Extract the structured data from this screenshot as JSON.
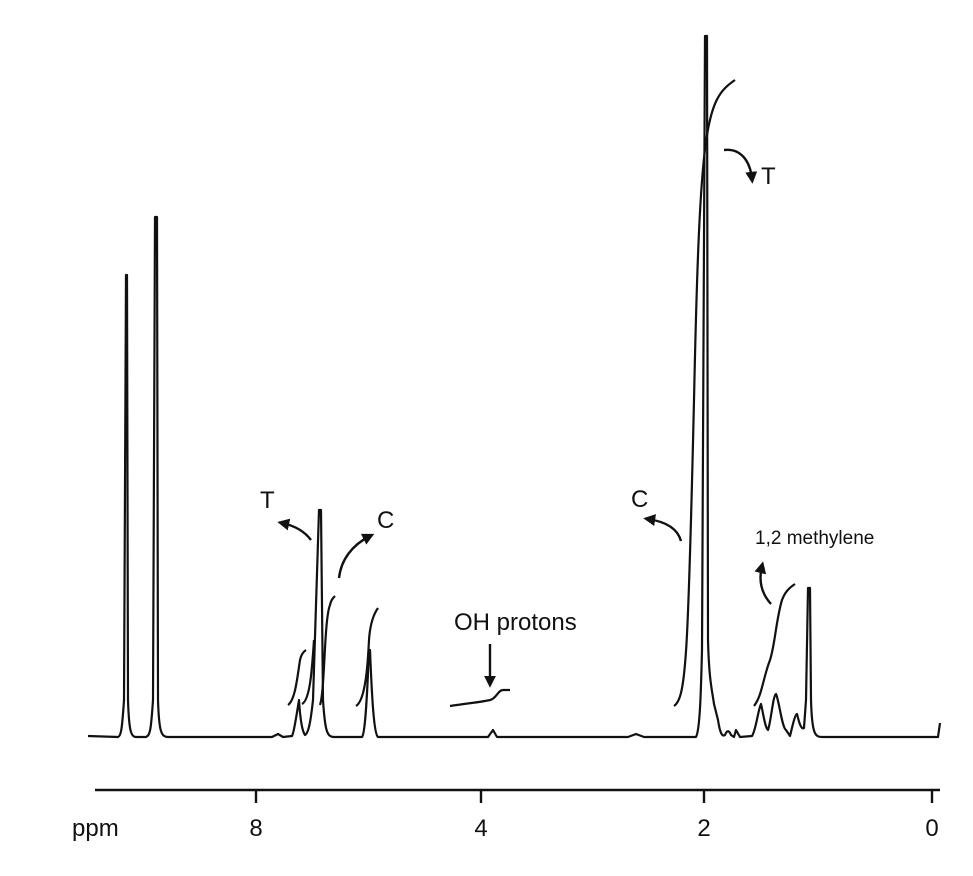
{
  "chart_data": {
    "type": "line",
    "title": "",
    "xlabel": "ppm",
    "ylabel": "",
    "x_reversed": true,
    "xlim": [
      9.5,
      0
    ],
    "ticks": [
      "8",
      "4",
      "2",
      "0"
    ],
    "peaks_ppm": [
      9.4,
      9.1,
      7.6,
      7.4,
      5.0,
      3.85,
      2.65,
      2.0,
      1.8,
      1.7,
      1.5,
      1.35,
      1.2,
      1.08
    ],
    "labels": {
      "T_left": "T",
      "C_left": "C",
      "OH": "OH protons",
      "C_right": "C",
      "T_right": "T",
      "methylene": "1,2 methylene"
    }
  }
}
